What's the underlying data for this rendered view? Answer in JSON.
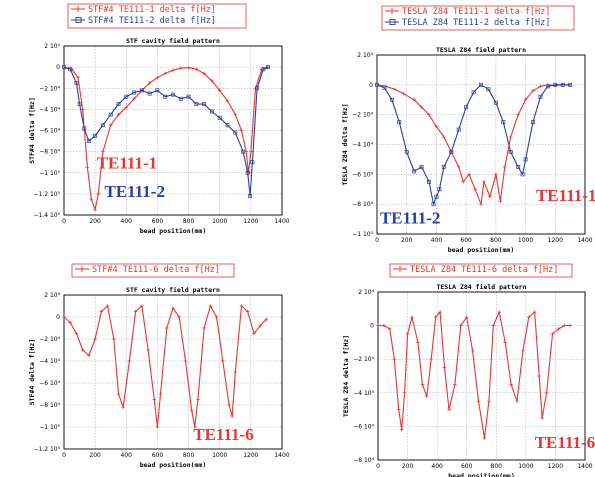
{
  "colors": {
    "red": "#e8352e",
    "blue": "#2b3f9c",
    "grid": "#9aa3b8"
  },
  "chart_data": [
    {
      "type": "line",
      "title": "STF cavity field pattern",
      "xlabel": "bead position(mm)",
      "ylabel": "STF#4 delta f[Hz]",
      "xlim": [
        0,
        1400
      ],
      "ylim": [
        -140000,
        20000
      ],
      "xticks": [
        0,
        200,
        400,
        600,
        800,
        1000,
        1200,
        1400
      ],
      "yticks": [
        20000,
        0,
        -20000,
        -40000,
        -60000,
        -80000,
        -100000,
        -120000,
        -140000
      ],
      "ytick_labels": [
        "2 10⁴",
        "0",
        "−2 10⁴",
        "−4 10⁴",
        "−6 10⁴",
        "−8 10⁴",
        "−1 10⁵",
        "−1.2 10⁵",
        "−1.4 10⁵"
      ],
      "annotations": [
        {
          "text": "TE111-1",
          "color": "red",
          "x": 210,
          "y": -96000
        },
        {
          "text": "TE111-2",
          "color": "blue",
          "x": 260,
          "y": -123000
        }
      ],
      "series": [
        {
          "name": "STF#4 TE111-1 delta f[Hz]",
          "color": "red",
          "marker": "plus",
          "x": [
            0,
            50,
            90,
            120,
            150,
            175,
            200,
            220,
            250,
            300,
            350,
            400,
            450,
            500,
            550,
            600,
            650,
            700,
            750,
            800,
            850,
            900,
            950,
            1000,
            1050,
            1100,
            1140,
            1170,
            1185,
            1200,
            1230,
            1270,
            1310
          ],
          "y": [
            0,
            -2000,
            -10000,
            -40000,
            -95000,
            -125000,
            -135000,
            -120000,
            -80000,
            -55000,
            -45000,
            -38000,
            -30000,
            -22000,
            -15000,
            -10000,
            -6000,
            -3000,
            -1000,
            -500,
            -2000,
            -6000,
            -13000,
            -22000,
            -32000,
            -45000,
            -60000,
            -80000,
            -100000,
            -80000,
            -20000,
            -2000,
            0
          ]
        },
        {
          "name": "STF#4 TE111-2 delta f[Hz]",
          "color": "blue",
          "marker": "square",
          "x": [
            0,
            40,
            80,
            100,
            130,
            160,
            200,
            250,
            300,
            350,
            400,
            450,
            500,
            550,
            600,
            650,
            700,
            750,
            800,
            850,
            900,
            950,
            1000,
            1050,
            1100,
            1150,
            1180,
            1195,
            1210,
            1240,
            1280,
            1310
          ],
          "y": [
            0,
            -2000,
            -15000,
            -35000,
            -58000,
            -70000,
            -65000,
            -55000,
            -45000,
            -35000,
            -28000,
            -24000,
            -22000,
            -25000,
            -22000,
            -28000,
            -26000,
            -30000,
            -28000,
            -35000,
            -35000,
            -42000,
            -48000,
            -55000,
            -62000,
            -80000,
            -100000,
            -122000,
            -90000,
            -20000,
            -2000,
            0
          ]
        }
      ]
    },
    {
      "type": "line",
      "title": "TESLA Z84 field pattern",
      "xlabel": "bead position(mm)",
      "ylabel": "TESLA Z84 delta f[Hz]",
      "xlim": [
        0,
        1400
      ],
      "ylim": [
        -100000,
        20000
      ],
      "xticks": [
        0,
        200,
        400,
        600,
        800,
        1000,
        1200,
        1400
      ],
      "yticks": [
        20000,
        0,
        -20000,
        -40000,
        -60000,
        -80000,
        -100000
      ],
      "ytick_labels": [
        "2 10⁴",
        "0",
        "−2 10⁴",
        "−4 10⁴",
        "−6 10⁴",
        "−8 10⁴",
        "−1 10⁵"
      ],
      "annotations": [
        {
          "text": "TE111-2",
          "color": "blue",
          "x": 20,
          "y": -93000
        },
        {
          "text": "TE111-1",
          "color": "red",
          "x": 1070,
          "y": -78000
        }
      ],
      "series": [
        {
          "name": "TESLA Z84 TE111-1 delta f[Hz]",
          "color": "red",
          "marker": "plus",
          "x": [
            0,
            60,
            120,
            180,
            250,
            300,
            350,
            400,
            450,
            500,
            550,
            580,
            620,
            660,
            700,
            720,
            760,
            800,
            830,
            860,
            900,
            950,
            1000,
            1050,
            1100,
            1150,
            1200,
            1250,
            1300
          ],
          "y": [
            0,
            -1000,
            -3000,
            -6000,
            -10000,
            -15000,
            -20000,
            -28000,
            -35000,
            -45000,
            -55000,
            -65000,
            -60000,
            -70000,
            -80000,
            -65000,
            -75000,
            -60000,
            -78000,
            -55000,
            -35000,
            -20000,
            -10000,
            -4000,
            -1000,
            0,
            -500,
            0,
            0
          ]
        },
        {
          "name": "TESLA Z84 TE111-2 delta f[Hz]",
          "color": "blue",
          "marker": "square",
          "x": [
            0,
            50,
            100,
            150,
            200,
            250,
            300,
            350,
            380,
            400,
            420,
            450,
            500,
            550,
            600,
            650,
            700,
            750,
            800,
            850,
            900,
            950,
            980,
            1000,
            1050,
            1100,
            1150,
            1200,
            1250,
            1300
          ],
          "y": [
            0,
            -2000,
            -10000,
            -25000,
            -45000,
            -58000,
            -55000,
            -65000,
            -80000,
            -75000,
            -70000,
            -55000,
            -45000,
            -30000,
            -15000,
            -5000,
            0,
            -3000,
            -12000,
            -25000,
            -45000,
            -55000,
            -60000,
            -50000,
            -25000,
            -8000,
            -1000,
            0,
            0,
            0
          ]
        }
      ]
    },
    {
      "type": "line",
      "title": "STF cavity field pattern",
      "xlabel": "bead position(mm)",
      "ylabel": "STF#4 delta f[Hz]",
      "xlim": [
        0,
        1400
      ],
      "ylim": [
        -120000,
        20000
      ],
      "xticks": [
        0,
        200,
        400,
        600,
        800,
        1000,
        1200,
        1400
      ],
      "yticks": [
        20000,
        0,
        -20000,
        -40000,
        -60000,
        -80000,
        -100000,
        -120000
      ],
      "ytick_labels": [
        "2 10⁴",
        "0",
        "−2 10⁴",
        "−4 10⁴",
        "−6 10⁴",
        "−8 10⁴",
        "−1 10⁵",
        "−1.2 10⁵"
      ],
      "annotations": [
        {
          "text": "TE111-6",
          "color": "red",
          "x": 830,
          "y": -112000
        }
      ],
      "series": [
        {
          "name": "STF#4 TE111-6 delta f[Hz]",
          "color": "red",
          "marker": "plus",
          "x": [
            0,
            40,
            80,
            120,
            160,
            200,
            240,
            280,
            320,
            350,
            380,
            420,
            460,
            500,
            540,
            580,
            600,
            620,
            660,
            700,
            740,
            780,
            820,
            840,
            860,
            900,
            940,
            980,
            1020,
            1060,
            1080,
            1100,
            1140,
            1180,
            1220,
            1260,
            1300
          ],
          "y": [
            0,
            -5000,
            -15000,
            -30000,
            -35000,
            -20000,
            5000,
            10000,
            -20000,
            -70000,
            -82000,
            -40000,
            5000,
            10000,
            -30000,
            -75000,
            -100000,
            -70000,
            -10000,
            8000,
            0,
            -40000,
            -85000,
            -100000,
            -75000,
            -10000,
            10000,
            0,
            -40000,
            -80000,
            -90000,
            -50000,
            10000,
            5000,
            -15000,
            -8000,
            -2000
          ]
        }
      ]
    },
    {
      "type": "line",
      "title": "TESLA Z84 field pattern",
      "xlabel": "bead position(mm)",
      "ylabel": "TESLA Z84 delta f[Hz]",
      "xlim": [
        0,
        1400
      ],
      "ylim": [
        -80000,
        20000
      ],
      "xticks": [
        0,
        200,
        400,
        600,
        800,
        1000,
        1200,
        1400
      ],
      "yticks": [
        20000,
        0,
        -20000,
        -40000,
        -60000,
        -80000
      ],
      "ytick_labels": [
        "2 10⁴",
        "0",
        "−2 10⁴",
        "−4 10⁴",
        "−6 10⁴",
        "−8 10⁴"
      ],
      "annotations": [
        {
          "text": "TE111-6",
          "color": "red",
          "x": 1060,
          "y": -73000
        }
      ],
      "series": [
        {
          "name": "TESLA Z84 TE111-6 delta f[Hz]",
          "color": "red",
          "marker": "plus",
          "x": [
            0,
            40,
            80,
            110,
            140,
            160,
            180,
            200,
            230,
            270,
            300,
            330,
            360,
            390,
            420,
            450,
            480,
            520,
            560,
            600,
            640,
            680,
            720,
            750,
            780,
            820,
            860,
            900,
            940,
            980,
            1020,
            1060,
            1090,
            1110,
            1140,
            1180,
            1220,
            1260,
            1300
          ],
          "y": [
            0,
            0,
            -2000,
            -20000,
            -50000,
            -62000,
            -40000,
            -5000,
            5000,
            -10000,
            -35000,
            -42000,
            -20000,
            5000,
            8000,
            -25000,
            -50000,
            -35000,
            0,
            5000,
            -15000,
            -45000,
            -67000,
            -45000,
            0,
            8000,
            -10000,
            -35000,
            -45000,
            -15000,
            5000,
            8000,
            -30000,
            -55000,
            -40000,
            -5000,
            -2000,
            0,
            0
          ]
        }
      ]
    }
  ]
}
